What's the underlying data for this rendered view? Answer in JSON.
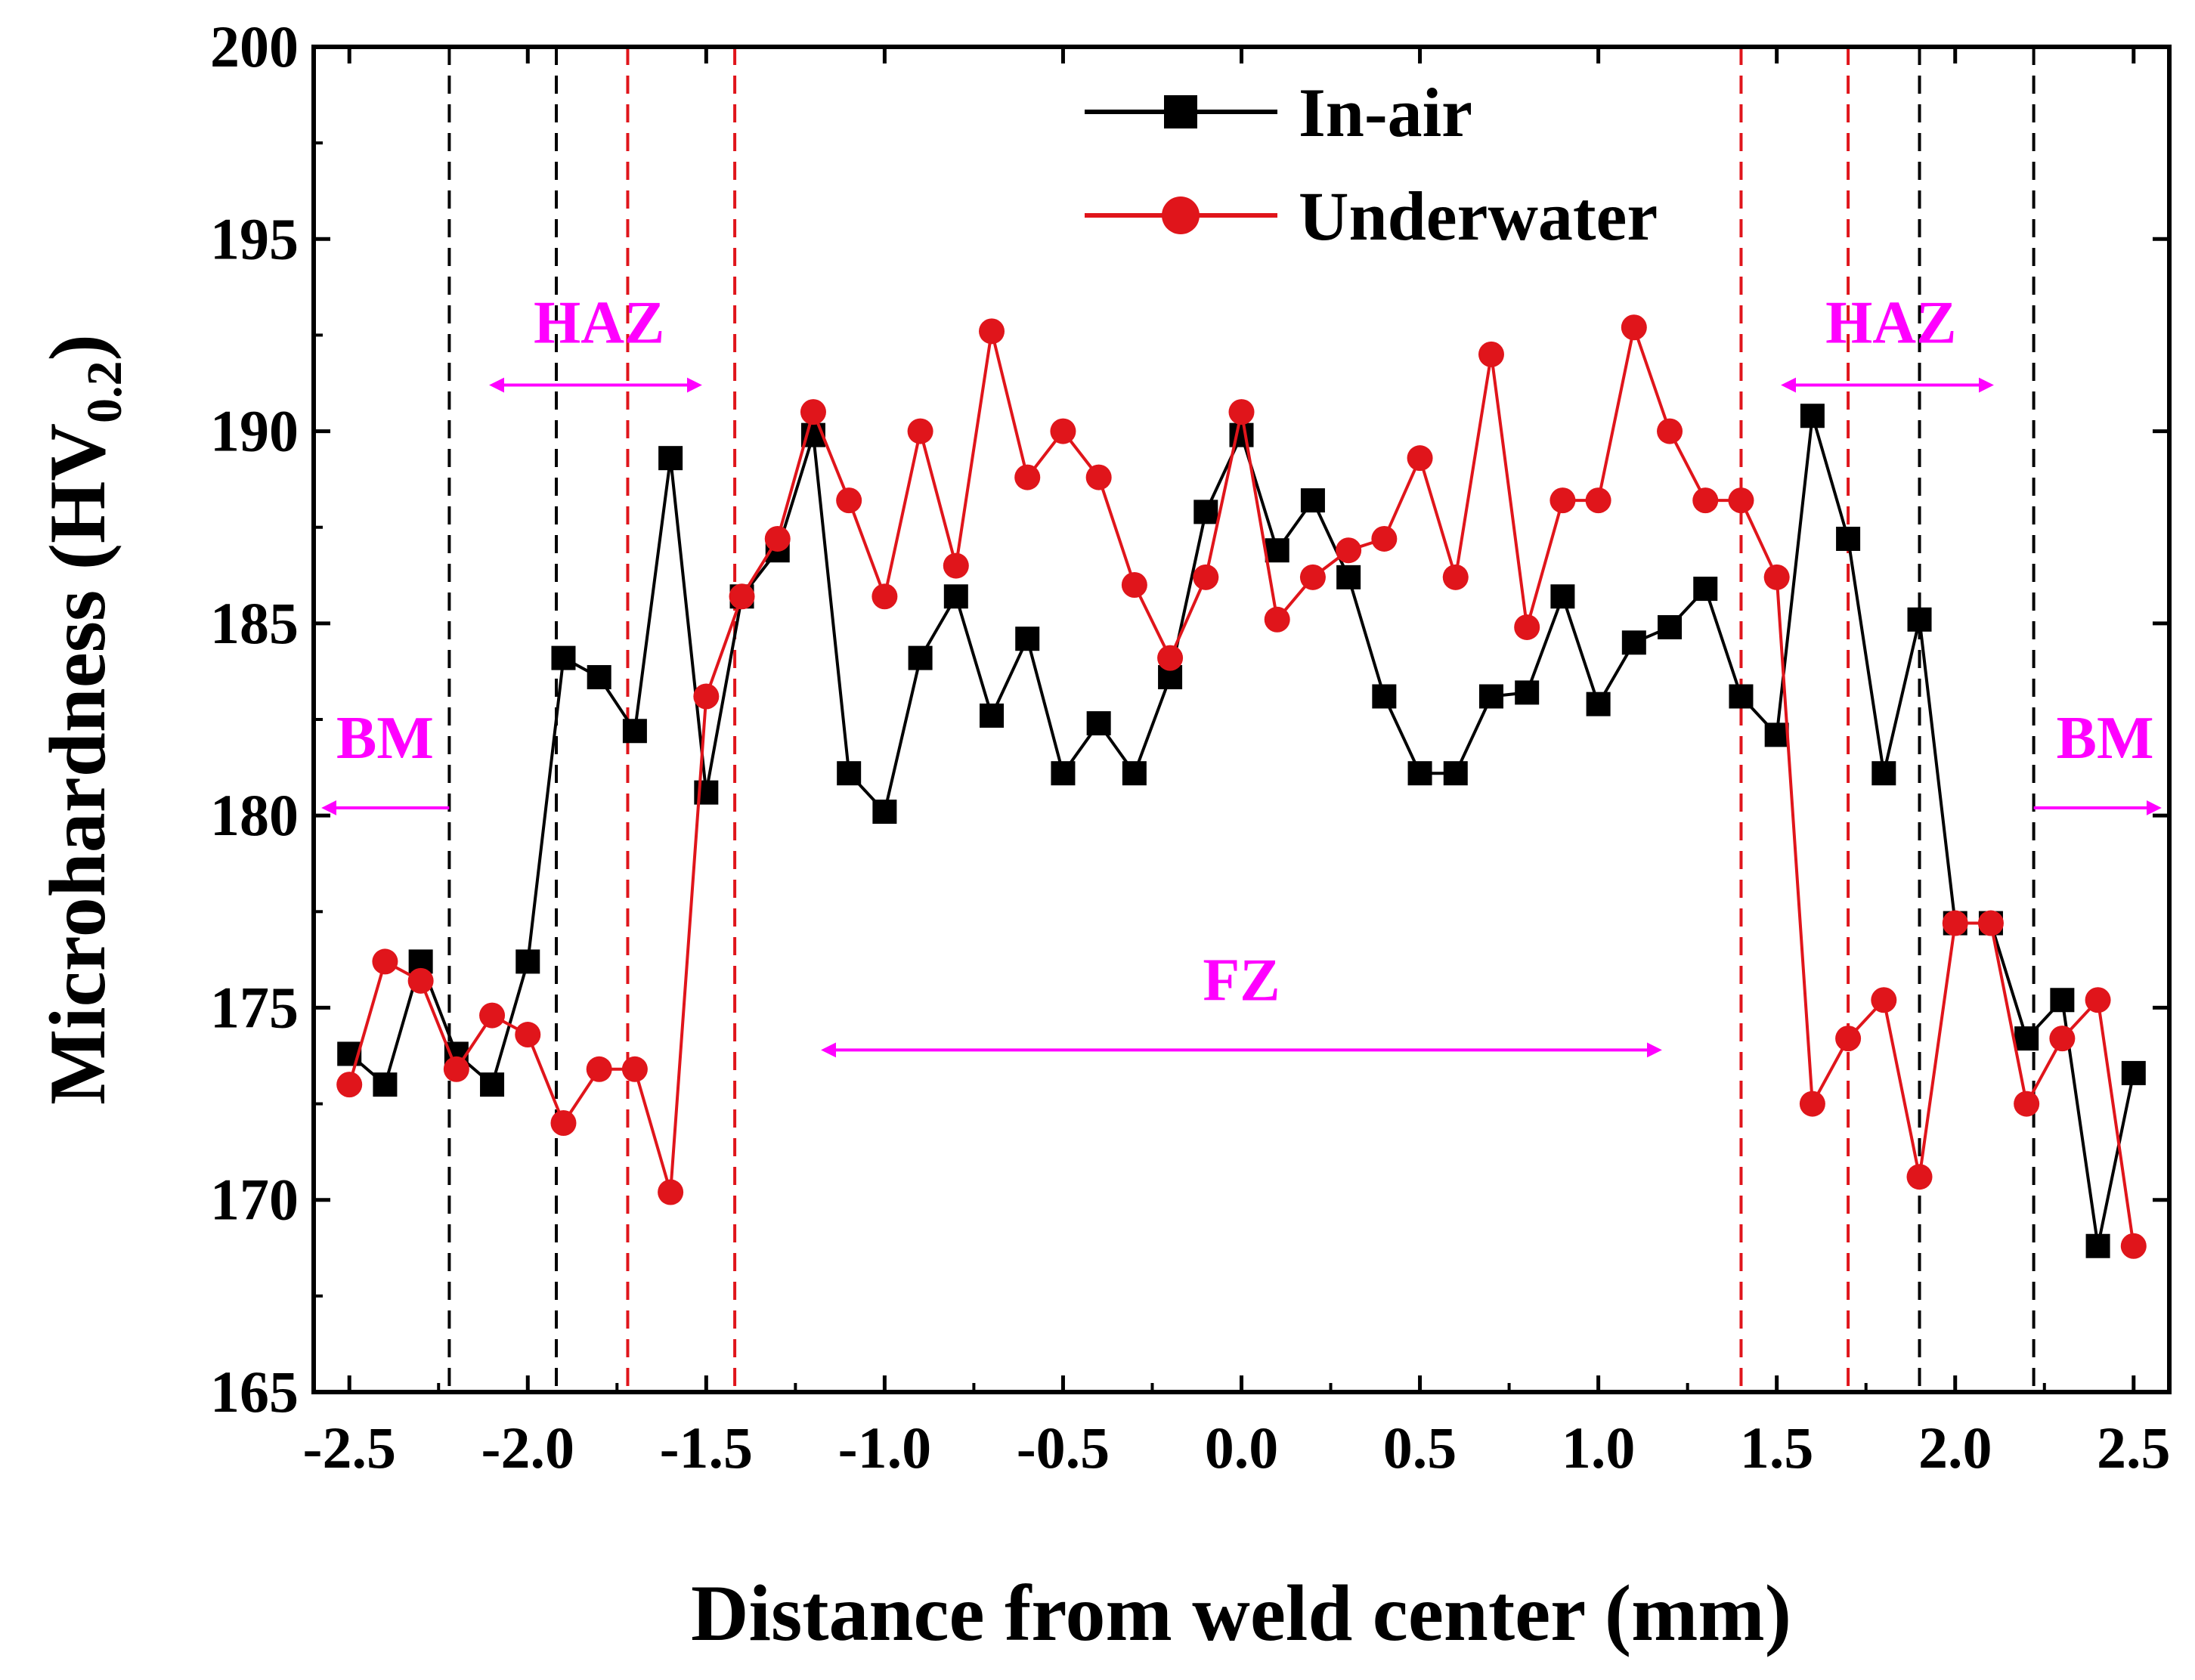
{
  "chart_data": {
    "type": "line",
    "title": "",
    "xlabel": "Distance from weld center (mm)",
    "ylabel": {
      "main": "Microhardness (HV",
      "sub": "0.2",
      "close": ")"
    },
    "xlim": [
      -2.6,
      2.6
    ],
    "ylim": [
      165,
      200
    ],
    "x_ticks": [
      -2.5,
      -2.0,
      -1.5,
      -1.0,
      -0.5,
      0.0,
      0.5,
      1.0,
      1.5,
      2.0,
      2.5
    ],
    "x_tick_labels": [
      "-2.5",
      "-2.0",
      "-1.5",
      "-1.0",
      "-0.5",
      "0.0",
      "0.5",
      "1.0",
      "1.5",
      "2.0",
      "2.5"
    ],
    "y_ticks": [
      165,
      170,
      175,
      180,
      185,
      190,
      195,
      200
    ],
    "y_tick_labels": [
      "165",
      "170",
      "175",
      "180",
      "185",
      "190",
      "195",
      "200"
    ],
    "series": [
      {
        "name": "In-air",
        "color": "#000000",
        "marker": "square",
        "x": [
          -2.5,
          -2.4,
          -2.3,
          -2.2,
          -2.1,
          -2.0,
          -1.9,
          -1.8,
          -1.7,
          -1.6,
          -1.5,
          -1.4,
          -1.3,
          -1.2,
          -1.1,
          -1.0,
          -0.9,
          -0.8,
          -0.7,
          -0.6,
          -0.5,
          -0.4,
          -0.3,
          -0.2,
          -0.1,
          0.0,
          0.1,
          0.2,
          0.3,
          0.4,
          0.5,
          0.6,
          0.7,
          0.8,
          0.9,
          1.0,
          1.1,
          1.2,
          1.3,
          1.4,
          1.5,
          1.6,
          1.7,
          1.8,
          1.9,
          2.0,
          2.1,
          2.2,
          2.3,
          2.4,
          2.5
        ],
        "y": [
          173.8,
          173.0,
          176.2,
          173.8,
          173.0,
          176.2,
          184.1,
          183.6,
          182.2,
          189.3,
          180.6,
          185.7,
          186.9,
          189.9,
          181.1,
          180.1,
          184.1,
          185.7,
          182.6,
          184.6,
          181.1,
          182.4,
          181.1,
          183.6,
          187.9,
          189.9,
          186.9,
          188.2,
          186.2,
          183.1,
          181.1,
          181.1,
          183.1,
          183.2,
          185.7,
          182.9,
          184.5,
          184.9,
          185.9,
          183.1,
          182.1,
          190.4,
          187.2,
          181.1,
          185.1,
          177.2,
          177.2,
          174.2,
          175.2,
          168.8,
          173.3
        ]
      },
      {
        "name": "Underwater",
        "color": "#e0151b",
        "marker": "circle",
        "x": [
          -2.5,
          -2.4,
          -2.3,
          -2.2,
          -2.1,
          -2.0,
          -1.9,
          -1.8,
          -1.7,
          -1.6,
          -1.5,
          -1.4,
          -1.3,
          -1.2,
          -1.1,
          -1.0,
          -0.9,
          -0.8,
          -0.7,
          -0.6,
          -0.5,
          -0.4,
          -0.3,
          -0.2,
          -0.1,
          0.0,
          0.1,
          0.2,
          0.3,
          0.4,
          0.5,
          0.6,
          0.7,
          0.8,
          0.9,
          1.0,
          1.1,
          1.2,
          1.3,
          1.4,
          1.5,
          1.6,
          1.7,
          1.8,
          1.9,
          2.0,
          2.1,
          2.2,
          2.3,
          2.4,
          2.5
        ],
        "y": [
          173.0,
          176.2,
          175.7,
          173.4,
          174.8,
          174.3,
          172.0,
          173.4,
          173.4,
          170.2,
          183.1,
          185.7,
          187.2,
          190.5,
          188.2,
          185.7,
          190.0,
          186.5,
          192.6,
          188.8,
          190.0,
          188.8,
          186.0,
          184.1,
          186.2,
          190.5,
          185.1,
          186.2,
          186.9,
          187.2,
          189.3,
          186.2,
          192.0,
          184.9,
          188.2,
          188.2,
          192.7,
          190.0,
          188.2,
          188.2,
          186.2,
          172.5,
          174.2,
          175.2,
          170.6,
          177.2,
          177.2,
          172.5,
          174.2,
          175.2,
          168.8
        ]
      }
    ],
    "boundaries": [
      {
        "x": -2.22,
        "color": "#000000"
      },
      {
        "x": -1.92,
        "color": "#000000"
      },
      {
        "x": -1.72,
        "color": "#e0151b"
      },
      {
        "x": -1.42,
        "color": "#e0151b"
      },
      {
        "x": 1.4,
        "color": "#e0151b"
      },
      {
        "x": 1.7,
        "color": "#e0151b"
      },
      {
        "x": 1.9,
        "color": "#000000"
      },
      {
        "x": 2.22,
        "color": "#000000"
      }
    ],
    "regions": [
      {
        "label": "BM",
        "label_x": -2.4,
        "label_y": 181.5,
        "arrow_from": -2.22,
        "arrow_to": -2.57,
        "arrow_y": 180.2
      },
      {
        "label": "HAZ",
        "label_x": -1.8,
        "label_y": 192.3,
        "arrow_from": -2.1,
        "arrow_to": -1.52,
        "arrow_y": 191.2
      },
      {
        "label": "FZ",
        "label_x": 0.0,
        "label_y": 175.2,
        "arrow_from": -1.17,
        "arrow_to": 1.17,
        "arrow_y": 173.9
      },
      {
        "label": "HAZ",
        "label_x": 1.82,
        "label_y": 192.3,
        "arrow_from": 1.52,
        "arrow_to": 2.1,
        "arrow_y": 191.2
      },
      {
        "label": "BM",
        "label_x": 2.42,
        "label_y": 181.5,
        "arrow_from": 2.22,
        "arrow_to": 2.57,
        "arrow_y": 180.2
      }
    ],
    "region_color": "#ff00ff",
    "legend_position": "top-center"
  }
}
